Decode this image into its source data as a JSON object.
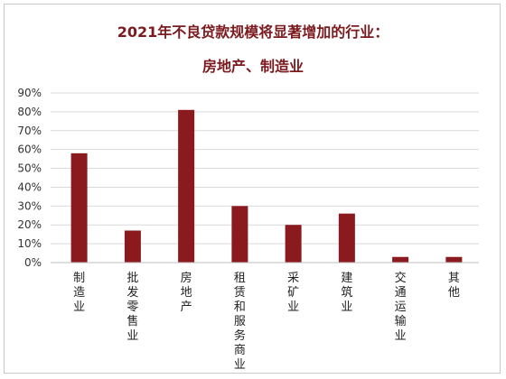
{
  "chart_data": {
    "type": "bar",
    "title": "2021年不良贷款规模将显著增加的行业：",
    "subtitle": "房地产、制造业",
    "categories": [
      "制造业",
      "批发零售业",
      "房地产",
      "租赁和服务商业",
      "采矿业",
      "建筑业",
      "交通运输业",
      "其他"
    ],
    "values": [
      58,
      17,
      81,
      30,
      20,
      26,
      3,
      3
    ],
    "y_ticks": [
      "0%",
      "10%",
      "20%",
      "30%",
      "40%",
      "50%",
      "60%",
      "70%",
      "80%",
      "90%"
    ],
    "ylim": [
      0,
      90
    ],
    "grid": true,
    "legend": "none",
    "colors": {
      "bar": "#8b1a1f",
      "title": "#7b1a1f",
      "grid": "#d9d9d9"
    }
  }
}
